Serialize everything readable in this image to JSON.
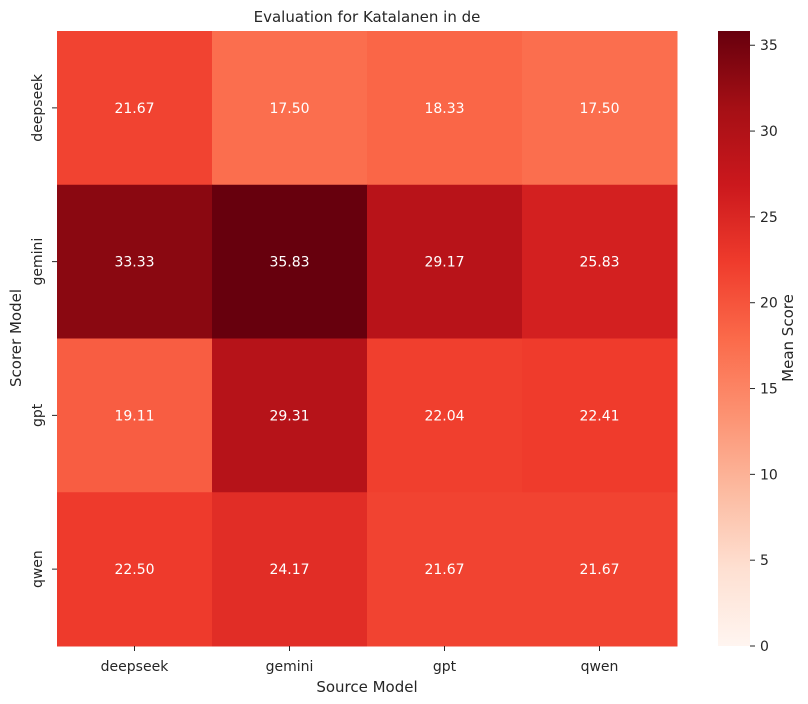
{
  "chart_data": {
    "type": "heatmap",
    "title": "Evaluation for Katalanen in de",
    "xlabel": "Source Model",
    "ylabel": "Scorer Model",
    "x_categories": [
      "deepseek",
      "gemini",
      "gpt",
      "qwen"
    ],
    "y_categories": [
      "deepseek",
      "gemini",
      "gpt",
      "qwen"
    ],
    "values": [
      [
        21.67,
        17.5,
        18.33,
        17.5
      ],
      [
        33.33,
        35.83,
        29.17,
        25.83
      ],
      [
        19.11,
        29.31,
        22.04,
        22.41
      ],
      [
        22.5,
        24.17,
        21.67,
        21.67
      ]
    ],
    "value_labels": [
      [
        "21.67",
        "17.50",
        "18.33",
        "17.50"
      ],
      [
        "33.33",
        "35.83",
        "29.17",
        "25.83"
      ],
      [
        "19.11",
        "29.31",
        "22.04",
        "22.41"
      ],
      [
        "22.50",
        "24.17",
        "21.67",
        "21.67"
      ]
    ],
    "colorbar": {
      "label": "Mean Score",
      "range": [
        0,
        35.83
      ],
      "ticks": [
        0,
        5,
        10,
        15,
        20,
        25,
        30,
        35
      ],
      "tick_labels": [
        "0",
        "5",
        "10",
        "15",
        "20",
        "25",
        "30",
        "35"
      ],
      "colormap": "Reds"
    }
  }
}
